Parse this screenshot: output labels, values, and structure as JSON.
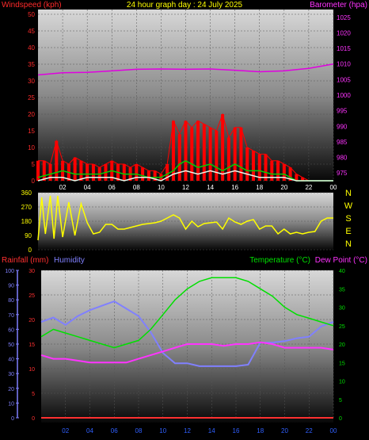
{
  "colors": {
    "background": "#000000",
    "wind_axis": "#ff2a2a",
    "baro_axis": "#ff33ff",
    "date_text": "#ffff00",
    "wind_main": "#ff0000",
    "gust": "#00d000",
    "average": "#e8f8e8",
    "barometer": "#e000e0",
    "direction": "#ffff00",
    "rain": "#ff3030",
    "humidity": "#8080ff",
    "temperature": "#00e000",
    "dewpoint": "#ff33ff",
    "x_ticks": "#3060ff",
    "compass": "#ffff00"
  },
  "chart_data": [
    {
      "id": "wind_baro",
      "type": "line",
      "title": "24 hour graph day : 24 July 2025",
      "ylabel": "Windspeed (kph)",
      "y2label": "Barometer (hpa)",
      "ylim": [
        0,
        50
      ],
      "y2lim": [
        972.5,
        1027.5
      ],
      "y_ticks": [
        "0",
        "5",
        "10",
        "15",
        "20",
        "25",
        "30",
        "35",
        "40",
        "45",
        "50"
      ],
      "y2_ticks": [
        "975",
        "980",
        "985",
        "990",
        "995",
        "1000",
        "1005",
        "1010",
        "1015",
        "1020",
        "1025"
      ],
      "x_ticks": [
        "02",
        "04",
        "06",
        "08",
        "10",
        "12",
        "14",
        "16",
        "18",
        "20",
        "22",
        "00"
      ],
      "xlim": [
        0,
        24
      ],
      "series": [
        {
          "key": "wind_max",
          "x": [
            0,
            0.5,
            1,
            1.5,
            2,
            2.5,
            3,
            3.5,
            4,
            4.5,
            5,
            5.5,
            6,
            6.5,
            7,
            7.5,
            8,
            8.5,
            9,
            9.5,
            10,
            10.5,
            11,
            11.5,
            12,
            12.5,
            13,
            13.5,
            14,
            14.5,
            15,
            15.5,
            16,
            16.5,
            17,
            17.5,
            18,
            18.5,
            19,
            19.5,
            20,
            20.5,
            21,
            21.5,
            22,
            22.5,
            23,
            23.5,
            24
          ],
          "values": [
            6,
            6,
            5,
            12,
            6,
            5,
            7,
            6,
            5,
            5,
            4,
            5,
            6,
            5,
            5,
            4,
            5,
            4,
            3,
            3,
            2,
            5,
            18,
            14,
            18,
            16,
            18,
            17,
            16,
            15,
            20,
            13,
            16,
            16,
            10,
            9,
            8,
            8,
            6,
            6,
            5,
            4,
            2,
            1,
            0,
            0,
            0,
            0,
            0
          ]
        },
        {
          "key": "gust",
          "x": [
            0,
            1,
            2,
            3,
            4,
            5,
            6,
            7,
            8,
            9,
            10,
            11,
            11.5,
            12,
            13,
            14,
            15,
            16,
            17,
            18,
            19,
            20,
            21,
            22,
            23,
            24
          ],
          "values": [
            1,
            2,
            3,
            2,
            2,
            2,
            3,
            2,
            2,
            1,
            1,
            3,
            5,
            6,
            4,
            5,
            3,
            5,
            3,
            3,
            2,
            2,
            0,
            0,
            0,
            0
          ]
        },
        {
          "key": "average",
          "x": [
            0,
            1,
            2,
            3,
            4,
            5,
            6,
            7,
            8,
            9,
            10,
            11,
            12,
            13,
            14,
            15,
            16,
            17,
            18,
            19,
            20,
            21,
            22,
            23,
            24
          ],
          "values": [
            0,
            1,
            1,
            0,
            1,
            1,
            1,
            0,
            1,
            1,
            0,
            2,
            3,
            2,
            3,
            2,
            3,
            2,
            1,
            1,
            1,
            0,
            0,
            0,
            0
          ]
        },
        {
          "key": "barometer",
          "x": [
            0,
            2,
            4,
            6,
            8,
            10,
            12,
            14,
            16,
            18,
            20,
            22,
            23,
            24
          ],
          "values": [
            1006.5,
            1007.2,
            1007.3,
            1007.8,
            1008.3,
            1008.4,
            1008.3,
            1008.4,
            1008.0,
            1007.5,
            1007.8,
            1008.6,
            1009.3,
            1010.0
          ]
        }
      ]
    },
    {
      "id": "wind_direction",
      "type": "line",
      "y_ticks": [
        "0",
        "90",
        "180",
        "270",
        "360"
      ],
      "ylim": [
        0,
        360
      ],
      "compass": [
        "N",
        "W",
        "S",
        "E",
        "N"
      ],
      "x": [
        0,
        0.3,
        0.6,
        1,
        1.3,
        1.6,
        2,
        2.5,
        3,
        3.5,
        4,
        4.5,
        5,
        5.5,
        6,
        6.5,
        7,
        7.5,
        8,
        8.5,
        9,
        9.5,
        10,
        10.5,
        11,
        11.5,
        12,
        12.5,
        13,
        13.5,
        14,
        14.5,
        15,
        15.5,
        16,
        16.5,
        17,
        17.5,
        18,
        18.5,
        19,
        19.5,
        20,
        20.5,
        21,
        21.5,
        22,
        22.5,
        23,
        23.5,
        24
      ],
      "values": [
        60,
        330,
        100,
        340,
        70,
        340,
        80,
        300,
        90,
        290,
        170,
        100,
        110,
        160,
        160,
        130,
        130,
        140,
        150,
        160,
        165,
        170,
        180,
        200,
        220,
        200,
        130,
        180,
        145,
        165,
        170,
        175,
        130,
        200,
        175,
        160,
        180,
        190,
        130,
        150,
        150,
        100,
        130,
        100,
        110,
        100,
        110,
        115,
        180,
        200,
        200
      ]
    },
    {
      "id": "rain_hum_temp",
      "type": "line",
      "ylabel": "Rainfall (mm)",
      "ylabel2": "Humidity",
      "y2label": "Temperature (°C)",
      "y2label2": "Dew Point (°C)",
      "rain_ylim": [
        0,
        30
      ],
      "rain_ticks": [
        "0",
        "5",
        "10",
        "15",
        "20",
        "25",
        "30"
      ],
      "hum_ylim": [
        0,
        100
      ],
      "hum_ticks": [
        "0",
        "10",
        "20",
        "30",
        "40",
        "50",
        "60",
        "70",
        "80",
        "90",
        "100"
      ],
      "temp_ylim": [
        0,
        40
      ],
      "temp_ticks": [
        "0",
        "5",
        "10",
        "15",
        "20",
        "25",
        "30",
        "35",
        "40"
      ],
      "x_ticks": [
        "02",
        "04",
        "06",
        "08",
        "10",
        "12",
        "14",
        "16",
        "18",
        "20",
        "22",
        "00"
      ],
      "xlim": [
        0,
        24
      ],
      "series": [
        {
          "key": "humidity",
          "x": [
            0,
            1,
            2,
            3,
            4,
            5,
            6,
            7,
            8,
            9,
            10,
            11,
            12,
            13,
            14,
            15,
            16,
            17,
            18,
            19,
            20,
            21,
            22,
            23,
            24
          ],
          "values": [
            65,
            68,
            63,
            69,
            73,
            76,
            79,
            74,
            69,
            58,
            44,
            37,
            37,
            35,
            35,
            35,
            35,
            36,
            51,
            51,
            52,
            54,
            55,
            62,
            65
          ]
        },
        {
          "key": "temperature",
          "x": [
            0,
            1,
            2,
            3,
            4,
            5,
            6,
            7,
            8,
            9,
            10,
            11,
            12,
            13,
            14,
            15,
            16,
            17,
            18,
            19,
            20,
            21,
            22,
            23,
            24
          ],
          "values": [
            22,
            24,
            23,
            22,
            21,
            20,
            19,
            20,
            21,
            24,
            28,
            32,
            35,
            37,
            38,
            38,
            38,
            37,
            35,
            33,
            30,
            28,
            27,
            26,
            25
          ]
        },
        {
          "key": "dewpoint",
          "x": [
            0,
            1,
            2,
            3,
            4,
            5,
            6,
            7,
            8,
            9,
            10,
            11,
            12,
            13,
            14,
            15,
            16,
            17,
            18,
            19,
            20,
            21,
            22,
            23,
            24
          ],
          "values": [
            17,
            16,
            16,
            15.5,
            15,
            15,
            15,
            15,
            16,
            17,
            18,
            19,
            20,
            20,
            20,
            19.5,
            20,
            20,
            20.5,
            20,
            19,
            19,
            19,
            19,
            18.5
          ]
        },
        {
          "key": "rain",
          "x": [
            0,
            24
          ],
          "values": [
            0,
            0
          ]
        }
      ]
    }
  ]
}
